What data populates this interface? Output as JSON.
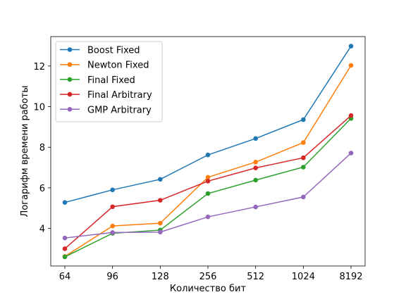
{
  "chart_data": {
    "type": "line",
    "categories": [
      "64",
      "96",
      "128",
      "256",
      "512",
      "1024",
      "8192"
    ],
    "xlabel": "Количество бит",
    "ylabel": "Логарифм времени работы",
    "ylim": [
      2.15,
      13.45
    ],
    "yticks": [
      4,
      6,
      8,
      10,
      12
    ],
    "grid": false,
    "legend_position": "top-left",
    "series": [
      {
        "name": "Boost Fixed",
        "color": "#1f77b4",
        "values": [
          5.28,
          5.9,
          6.42,
          7.62,
          8.43,
          9.36,
          12.98
        ]
      },
      {
        "name": "Newton Fixed",
        "color": "#ff7f0e",
        "values": [
          2.62,
          4.12,
          4.26,
          6.52,
          7.27,
          8.23,
          12.03
        ]
      },
      {
        "name": "Final Fixed",
        "color": "#2ca02c",
        "values": [
          2.6,
          3.76,
          3.92,
          5.72,
          6.38,
          7.02,
          9.42
        ]
      },
      {
        "name": "Final Arbitrary",
        "color": "#d62728",
        "values": [
          3.0,
          5.07,
          5.39,
          6.33,
          6.98,
          7.48,
          9.56
        ]
      },
      {
        "name": "GMP Arbitrary",
        "color": "#9467bd",
        "values": [
          3.53,
          3.8,
          3.82,
          4.57,
          5.06,
          5.55,
          7.71
        ]
      }
    ]
  }
}
